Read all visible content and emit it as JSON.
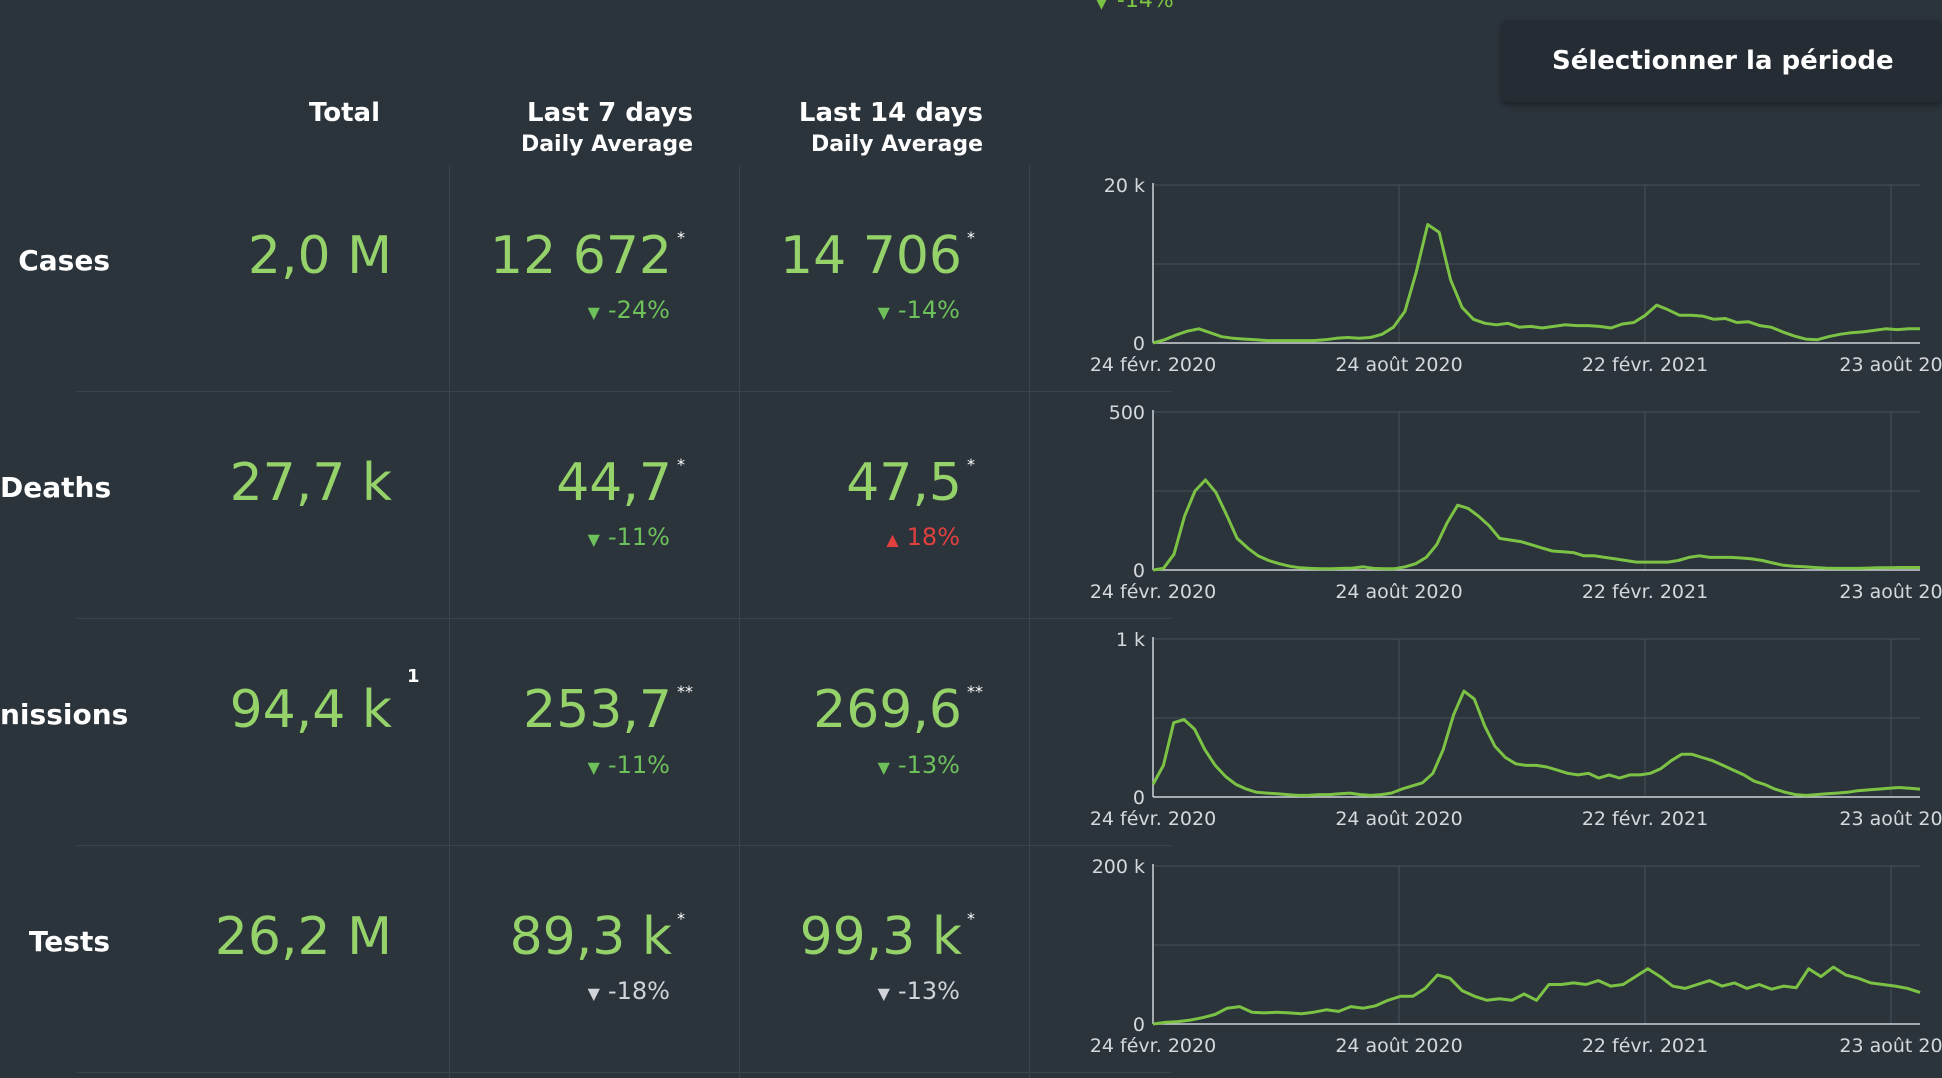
{
  "period_button": "Sélectionner la période",
  "top_fragment": "-14%",
  "columns": {
    "total": {
      "h1": "Total",
      "h2": ""
    },
    "last7": {
      "h1": "Last 7 days",
      "h2": "Daily Average"
    },
    "last14": {
      "h1": "Last 14 days",
      "h2": "Daily Average"
    }
  },
  "rows": [
    {
      "label": "Cases",
      "total": "2,0 M",
      "total_sup": "",
      "last7": "12 672",
      "last7_mark": "*",
      "last7_change": "-24%",
      "last7_dir": "down",
      "last7_color": "#6dc05a",
      "last14": "14 706",
      "last14_mark": "*",
      "last14_change": "-14%",
      "last14_dir": "down",
      "last14_color": "#6dc05a"
    },
    {
      "label": "Deaths",
      "total": "27,7 k",
      "total_sup": "",
      "last7": "44,7",
      "last7_mark": "*",
      "last7_change": "-11%",
      "last7_dir": "down",
      "last7_color": "#6dc05a",
      "last14": "47,5",
      "last14_mark": "*",
      "last14_change": "18%",
      "last14_dir": "up",
      "last14_color": "#e0413f"
    },
    {
      "label": "nissions",
      "total": "94,4 k",
      "total_sup": "1",
      "last7": "253,7",
      "last7_mark": "**",
      "last7_change": "-11%",
      "last7_dir": "down",
      "last7_color": "#6dc05a",
      "last14": "269,6",
      "last14_mark": "**",
      "last14_change": "-13%",
      "last14_dir": "down",
      "last14_color": "#6dc05a"
    },
    {
      "label": "Tests",
      "total": "26,2 M",
      "total_sup": "",
      "last7": "89,3 k",
      "last7_mark": "*",
      "last7_change": "-18%",
      "last7_dir": "down",
      "last7_color": "#d0d4d8",
      "last14": "99,3 k",
      "last14_mark": "*",
      "last14_change": "-13%",
      "last14_dir": "down",
      "last14_color": "#d0d4d8"
    }
  ],
  "colors": {
    "line": "#7cc245",
    "bg": "#2b333b",
    "grid": "#46505a"
  },
  "chart_data": [
    {
      "type": "line",
      "row": "Cases",
      "x_ticks": [
        "24 févr. 2020",
        "24 août 2020",
        "22 févr. 2021",
        "23 août 20"
      ],
      "y_ticks": [
        "0",
        "20 k"
      ],
      "ylim": [
        0,
        20000
      ],
      "values": [
        0,
        400,
        1000,
        1500,
        1800,
        1300,
        800,
        600,
        500,
        400,
        300,
        300,
        300,
        300,
        300,
        400,
        600,
        700,
        600,
        700,
        1100,
        2000,
        4000,
        9000,
        15000,
        14000,
        8000,
        4500,
        3000,
        2500,
        2300,
        2500,
        2000,
        2100,
        1900,
        2100,
        2300,
        2200,
        2200,
        2100,
        1900,
        2400,
        2600,
        3500,
        4800,
        4200,
        3500,
        3500,
        3400,
        3000,
        3100,
        2600,
        2700,
        2200,
        2000,
        1400,
        900,
        500,
        400,
        800,
        1100,
        1300,
        1400,
        1600,
        1800,
        1700,
        1800,
        1800
      ]
    },
    {
      "type": "line",
      "row": "Deaths",
      "x_ticks": [
        "24 févr. 2020",
        "24 août 2020",
        "22 févr. 2021",
        "23 août 20"
      ],
      "y_ticks": [
        "0",
        "500"
      ],
      "ylim": [
        0,
        500
      ],
      "values": [
        0,
        5,
        50,
        170,
        250,
        285,
        245,
        175,
        100,
        70,
        45,
        30,
        20,
        12,
        7,
        5,
        4,
        4,
        5,
        6,
        10,
        5,
        4,
        4,
        10,
        20,
        40,
        80,
        150,
        205,
        195,
        170,
        140,
        100,
        95,
        90,
        80,
        70,
        60,
        58,
        55,
        45,
        45,
        40,
        35,
        30,
        25,
        25,
        25,
        25,
        30,
        40,
        45,
        40,
        40,
        40,
        38,
        35,
        30,
        22,
        15,
        12,
        10,
        8,
        6,
        5,
        5,
        5,
        6,
        7,
        7,
        8,
        8,
        8
      ]
    },
    {
      "type": "line",
      "row": "nissions",
      "x_ticks": [
        "24 févr. 2020",
        "24 août 2020",
        "22 févr. 2021",
        "23 août 20"
      ],
      "y_ticks": [
        "0",
        "1 k"
      ],
      "ylim": [
        0,
        1000
      ],
      "values": [
        80,
        200,
        470,
        490,
        430,
        300,
        200,
        130,
        80,
        50,
        30,
        25,
        20,
        15,
        10,
        10,
        15,
        15,
        20,
        25,
        15,
        10,
        15,
        25,
        50,
        70,
        90,
        150,
        300,
        520,
        670,
        620,
        450,
        320,
        250,
        210,
        200,
        200,
        190,
        170,
        150,
        140,
        150,
        120,
        140,
        120,
        140,
        140,
        150,
        180,
        230,
        270,
        270,
        250,
        230,
        200,
        170,
        140,
        100,
        80,
        50,
        30,
        15,
        10,
        15,
        20,
        25,
        30,
        40,
        45,
        50,
        55,
        60,
        55,
        50
      ]
    },
    {
      "type": "line",
      "row": "Tests",
      "x_ticks": [
        "24 févr. 2020",
        "24 août 2020",
        "22 févr. 2021",
        "23 août 20"
      ],
      "y_ticks": [
        "0",
        "200 k"
      ],
      "ylim": [
        0,
        200000
      ],
      "values": [
        0,
        2000,
        3000,
        5000,
        8000,
        12000,
        20000,
        22000,
        15000,
        14000,
        15000,
        14000,
        13000,
        15000,
        18000,
        16000,
        22000,
        20000,
        23000,
        30000,
        35000,
        35000,
        45000,
        62000,
        58000,
        42000,
        35000,
        30000,
        32000,
        30000,
        38000,
        30000,
        50000,
        50000,
        52000,
        50000,
        55000,
        48000,
        50000,
        60000,
        70000,
        60000,
        48000,
        45000,
        50000,
        55000,
        48000,
        52000,
        45000,
        50000,
        44000,
        48000,
        46000,
        70000,
        60000,
        72000,
        62000,
        58000,
        52000,
        50000,
        48000,
        45000,
        40000
      ]
    }
  ]
}
